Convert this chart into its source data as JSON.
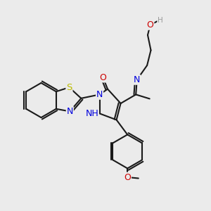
{
  "bg": "#ebebeb",
  "bc": "#1a1a1a",
  "NC": "#0000dd",
  "OC": "#cc0000",
  "SC": "#bbbb00",
  "HC": "#999999",
  "lw": 1.5,
  "fs": 9.0,
  "dpi": 100,
  "figsize": [
    3.0,
    3.0
  ],
  "xlim": [
    0,
    10
  ],
  "ylim": [
    0,
    10
  ]
}
